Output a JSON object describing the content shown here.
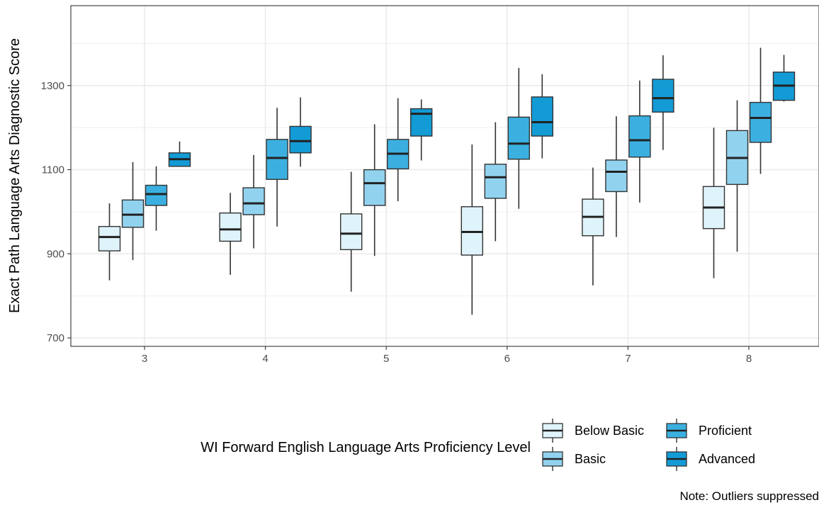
{
  "chart_data": {
    "type": "boxplot",
    "ylabel": "Exact Path Language Arts Diagnostic Score",
    "ylim": [
      680,
      1490
    ],
    "yticks": [
      700,
      900,
      1100,
      1300
    ],
    "categories": [
      "3",
      "4",
      "5",
      "6",
      "7",
      "8"
    ],
    "legend": {
      "title": "WI Forward English Language Arts Proficiency Level",
      "position": "bottom"
    },
    "caption": "Note: Outliers suppressed",
    "grid": true,
    "series": [
      {
        "name": "Below Basic",
        "color": "#dff3fb",
        "boxes": [
          {
            "min": 837,
            "q1": 907,
            "median": 940,
            "q3": 965,
            "max": 1020
          },
          {
            "min": 850,
            "q1": 930,
            "median": 958,
            "q3": 997,
            "max": 1045
          },
          {
            "min": 810,
            "q1": 910,
            "median": 948,
            "q3": 995,
            "max": 1095
          },
          {
            "min": 755,
            "q1": 897,
            "median": 952,
            "q3": 1012,
            "max": 1160
          },
          {
            "min": 825,
            "q1": 943,
            "median": 988,
            "q3": 1030,
            "max": 1105
          },
          {
            "min": 842,
            "q1": 960,
            "median": 1010,
            "q3": 1060,
            "max": 1200
          }
        ]
      },
      {
        "name": "Basic",
        "color": "#91d3ef",
        "boxes": [
          {
            "min": 885,
            "q1": 963,
            "median": 993,
            "q3": 1028,
            "max": 1118
          },
          {
            "min": 913,
            "q1": 993,
            "median": 1020,
            "q3": 1057,
            "max": 1135
          },
          {
            "min": 895,
            "q1": 1015,
            "median": 1068,
            "q3": 1100,
            "max": 1208
          },
          {
            "min": 930,
            "q1": 1032,
            "median": 1082,
            "q3": 1113,
            "max": 1213
          },
          {
            "min": 940,
            "q1": 1048,
            "median": 1095,
            "q3": 1123,
            "max": 1227
          },
          {
            "min": 905,
            "q1": 1065,
            "median": 1128,
            "q3": 1193,
            "max": 1265
          }
        ]
      },
      {
        "name": "Proficient",
        "color": "#3bb0e0",
        "boxes": [
          {
            "min": 955,
            "q1": 1015,
            "median": 1042,
            "q3": 1063,
            "max": 1108
          },
          {
            "min": 965,
            "q1": 1077,
            "median": 1128,
            "q3": 1172,
            "max": 1247
          },
          {
            "min": 1025,
            "q1": 1102,
            "median": 1138,
            "q3": 1172,
            "max": 1270
          },
          {
            "min": 1007,
            "q1": 1125,
            "median": 1162,
            "q3": 1225,
            "max": 1342
          },
          {
            "min": 1022,
            "q1": 1130,
            "median": 1170,
            "q3": 1228,
            "max": 1312
          },
          {
            "min": 1090,
            "q1": 1165,
            "median": 1223,
            "q3": 1260,
            "max": 1390
          }
        ]
      },
      {
        "name": "Advanced",
        "color": "#139bd5",
        "boxes": [
          {
            "min": 1108,
            "q1": 1108,
            "median": 1125,
            "q3": 1140,
            "max": 1167
          },
          {
            "min": 1107,
            "q1": 1140,
            "median": 1168,
            "q3": 1203,
            "max": 1272
          },
          {
            "min": 1122,
            "q1": 1180,
            "median": 1233,
            "q3": 1245,
            "max": 1267
          },
          {
            "min": 1127,
            "q1": 1180,
            "median": 1213,
            "q3": 1273,
            "max": 1327
          },
          {
            "min": 1147,
            "q1": 1237,
            "median": 1270,
            "q3": 1315,
            "max": 1372
          },
          {
            "min": 1262,
            "q1": 1265,
            "median": 1300,
            "q3": 1332,
            "max": 1373
          }
        ]
      }
    ]
  }
}
